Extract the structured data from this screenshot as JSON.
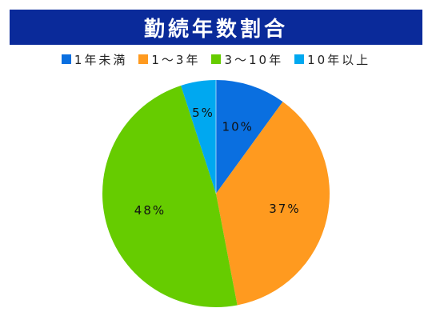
{
  "chart_data": {
    "type": "pie",
    "title": "勤続年数割合",
    "legend_position": "top",
    "slices": [
      {
        "name": "1年未満",
        "value": 10,
        "label": "10%",
        "color": "#0a6fe0"
      },
      {
        "name": "1～3年",
        "value": 37,
        "label": "37%",
        "color": "#ff9a1f"
      },
      {
        "name": "3～10年",
        "value": 48,
        "label": "48%",
        "color": "#66cc00"
      },
      {
        "name": "10年以上",
        "value": 5,
        "label": "5%",
        "color": "#00a8f0"
      }
    ]
  }
}
